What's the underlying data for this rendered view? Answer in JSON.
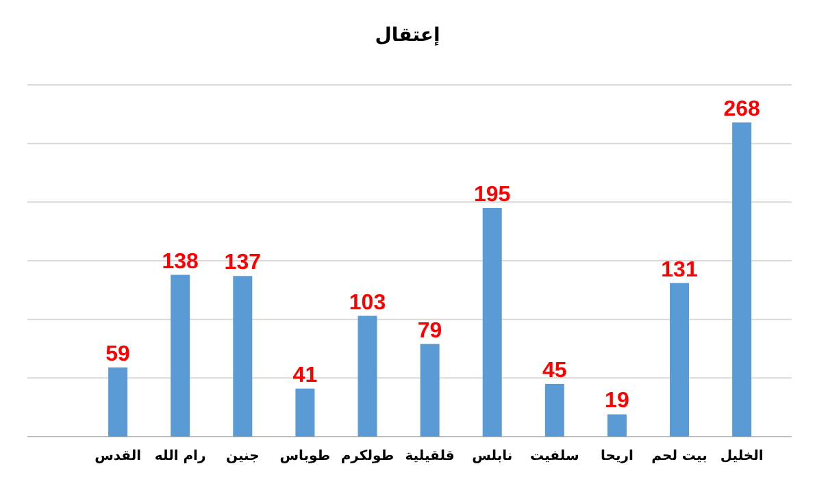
{
  "chart_data": {
    "type": "bar",
    "title": "إعتقال",
    "categories": [
      "القدس",
      "رام الله",
      "جنين",
      "طوباس",
      "طولكرم",
      "قلقيلية",
      "نابلس",
      "سلفيت",
      "اريحا",
      "بيت لحم",
      "الخليل"
    ],
    "values": [
      59,
      138,
      137,
      41,
      103,
      79,
      195,
      45,
      19,
      131,
      268
    ],
    "color": "#5b9bd5",
    "ylim": [
      0,
      300
    ],
    "yticks": [
      {
        "value": 0,
        "label": null
      },
      {
        "value": 50,
        "label": null
      },
      {
        "value": 100,
        "label": null
      },
      {
        "value": 150,
        "label": null
      },
      {
        "value": 200,
        "label": null
      },
      {
        "value": 250,
        "label": null
      },
      {
        "value": 300,
        "label": null
      }
    ],
    "grid": "y",
    "tick_labels": "x",
    "data_labels": true
  }
}
